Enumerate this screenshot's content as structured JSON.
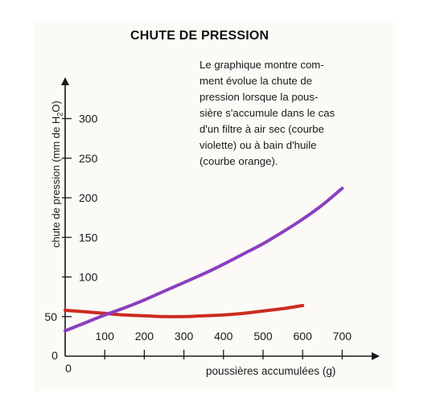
{
  "chart_data": {
    "type": "line",
    "title": "CHUTE DE PRESSION",
    "annotation": "Le graphique montre com-\nment évolue la chute de\npression lorsque la pous-\nsière s'accumule dans le cas\nd'un filtre à air sec (courbe\nviolette) ou à bain d'huile\n(courbe orange).",
    "ylabel_prefix": "chute de pression (mm de H",
    "ylabel_sub": "2",
    "ylabel_suffix": "O)",
    "xlabel": "poussières accumulées (g)",
    "x_origin_label": "0",
    "y_origin_label": "0",
    "xlim": [
      0,
      780
    ],
    "ylim": [
      0,
      350
    ],
    "x_ticks": [
      100,
      200,
      300,
      400,
      500,
      600,
      700
    ],
    "x_tick_labels": [
      "100",
      "200",
      "300",
      "400",
      "500",
      "600",
      "700"
    ],
    "y_ticks": [
      50,
      100,
      150,
      200,
      250,
      300
    ],
    "y_tick_labels": [
      "50",
      "100",
      "150",
      "200",
      "250",
      "300"
    ],
    "grid": false,
    "series": [
      {
        "color": "#8a3fbf",
        "x": [
          0,
          50,
          100,
          150,
          200,
          250,
          300,
          350,
          400,
          450,
          500,
          550,
          600,
          650,
          700
        ],
        "y": [
          32,
          42,
          52,
          61,
          71,
          82,
          93,
          104,
          116,
          129,
          142,
          157,
          173,
          191,
          212
        ]
      },
      {
        "color": "#cc2b1f",
        "x": [
          0,
          50,
          100,
          150,
          200,
          250,
          300,
          350,
          400,
          450,
          500,
          550,
          600
        ],
        "y": [
          58,
          56,
          54,
          52,
          51,
          50,
          50,
          51,
          52,
          54,
          57,
          60,
          64
        ]
      }
    ]
  }
}
